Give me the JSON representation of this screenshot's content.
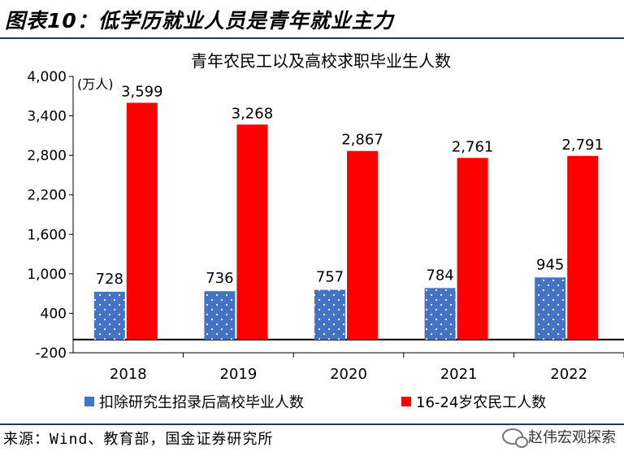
{
  "figure_title": "图表10：低学历就业人员是青年就业主力",
  "source_note": "来源：Wind、教育部，国金证券研究所",
  "watermark": "赵伟宏观探索",
  "colors": {
    "series1": "#4472c4",
    "series2": "#ff0000",
    "rule": "#1f3864"
  },
  "chart_data": {
    "type": "bar",
    "title": "青年农民工以及高校求职毕业生人数",
    "unit_label": "(万人)",
    "categories": [
      "2018",
      "2019",
      "2020",
      "2021",
      "2022"
    ],
    "series": [
      {
        "name": "扣除研究生招录后高校毕业人数",
        "values": [
          728,
          736,
          757,
          784,
          945
        ],
        "pattern": "dotted"
      },
      {
        "name": "16-24岁农民工人数",
        "values": [
          3599,
          3268,
          2867,
          2761,
          2791
        ]
      }
    ],
    "ylim": [
      -200,
      4000
    ],
    "yticks": [
      "-200",
      "400",
      "1,000",
      "1,600",
      "2,200",
      "2,800",
      "3,400",
      "4,000"
    ],
    "ytick_values": [
      -200,
      400,
      1000,
      1600,
      2200,
      2800,
      3400,
      4000
    ],
    "data_labels_1": [
      "728",
      "736",
      "757",
      "784",
      "945"
    ],
    "data_labels_2": [
      "3,599",
      "3,268",
      "2,867",
      "2,761",
      "2,791"
    ],
    "grid": false,
    "legend_position": "bottom"
  }
}
